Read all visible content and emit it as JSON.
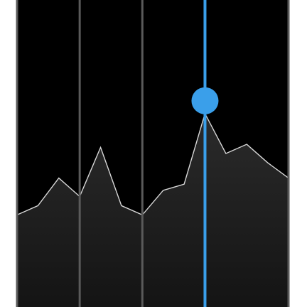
{
  "chart_data": {
    "type": "area",
    "x": [
      0,
      1,
      2,
      3,
      4,
      5,
      6,
      7,
      8,
      9,
      10,
      11,
      12,
      13
    ],
    "values": [
      0.3,
      0.33,
      0.42,
      0.36,
      0.52,
      0.33,
      0.3,
      0.38,
      0.4,
      0.63,
      0.5,
      0.53,
      0.47,
      0.42
    ],
    "ylim": [
      0,
      1
    ],
    "grid": true,
    "vertical_gridlines_at": [
      3,
      6
    ],
    "selected_index": 9,
    "colors": {
      "background": "#000000",
      "fill_top": "#2b2b2b",
      "fill_bottom": "#141414",
      "line": "#d8d8d8",
      "gridline": "#5a5a5a",
      "cursor": "#3a9fea",
      "page": "#ffffff"
    }
  }
}
